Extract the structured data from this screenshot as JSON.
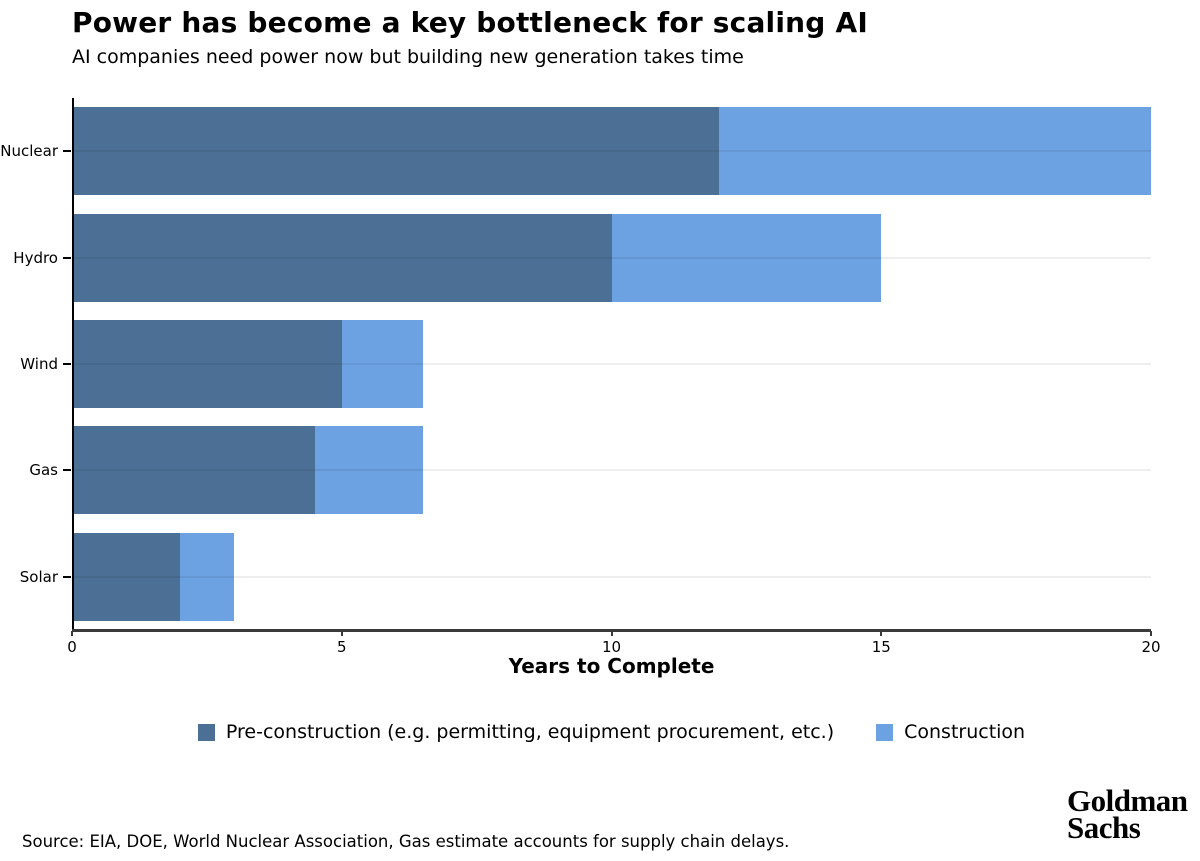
{
  "header": {
    "title": "Power has become a key bottleneck for scaling AI",
    "subtitle": "AI companies need power now but building new generation takes time"
  },
  "chart_data": {
    "type": "bar",
    "orientation": "horizontal",
    "stacked": true,
    "title": "Power has become a key bottleneck for scaling AI",
    "subtitle": "AI companies need power now but building new generation takes time",
    "categories": [
      "Nuclear",
      "Hydro",
      "Wind",
      "Gas",
      "Solar"
    ],
    "series": [
      {
        "name": "Pre-construction (e.g. permitting, equipment procurement, etc.)",
        "color": "#4C7095",
        "values": [
          12,
          10,
          5,
          4.5,
          2
        ]
      },
      {
        "name": "Construction",
        "color": "#6CA2E2",
        "values": [
          8,
          5,
          1.5,
          2,
          1
        ]
      }
    ],
    "totals": [
      20,
      15,
      6.5,
      6.5,
      3
    ],
    "xlabel": "Years to Complete",
    "ylabel": "",
    "xlim": [
      0,
      20
    ],
    "xticks": [
      0,
      5,
      10,
      15,
      20
    ],
    "grid": "faint horizontal line at each category",
    "legend_position": "bottom-center"
  },
  "footer": {
    "source": "Source: EIA, DOE, World Nuclear Association, Gas estimate accounts for supply chain delays.",
    "logo_line1": "Goldman",
    "logo_line2": "Sachs"
  }
}
